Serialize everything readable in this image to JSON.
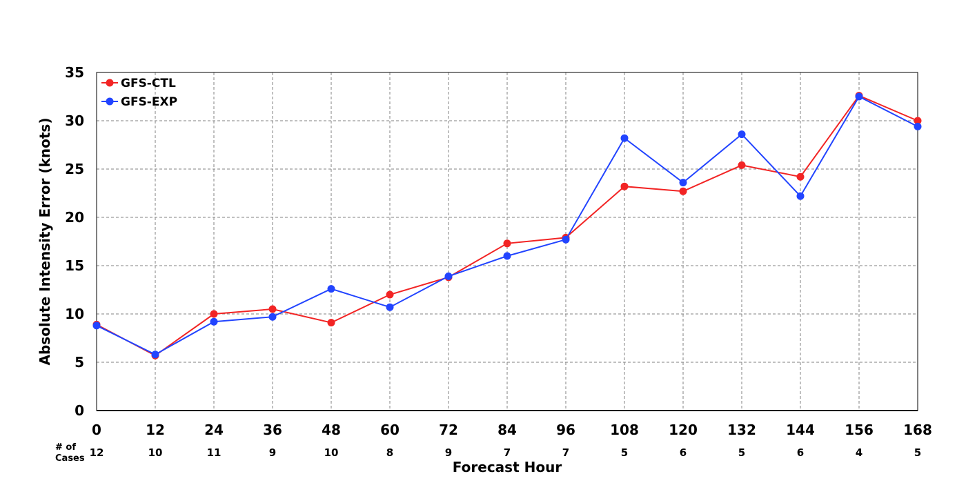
{
  "chart_data": {
    "type": "line",
    "xlabel": "Forecast Hour",
    "ylabel": "Absolute Intensity Error (knots)",
    "x": [
      0,
      12,
      24,
      36,
      48,
      60,
      72,
      84,
      96,
      108,
      120,
      132,
      144,
      156,
      168
    ],
    "xlim": [
      0,
      168
    ],
    "ylim": [
      0,
      35
    ],
    "yticks": [
      0,
      5,
      10,
      15,
      20,
      25,
      30,
      35
    ],
    "grid": true,
    "legend_position": "top-left",
    "cases_label": [
      "# of",
      "Cases"
    ],
    "cases": [
      12,
      10,
      11,
      9,
      10,
      8,
      9,
      7,
      7,
      5,
      6,
      5,
      6,
      4,
      5
    ],
    "series": [
      {
        "name": "GFS-CTL",
        "color": "#f22424",
        "values": [
          8.9,
          5.7,
          10.0,
          10.5,
          9.1,
          12.0,
          13.8,
          17.3,
          17.9,
          23.2,
          22.7,
          25.4,
          24.2,
          32.6,
          30.0
        ]
      },
      {
        "name": "GFS-EXP",
        "color": "#2244ff",
        "values": [
          8.8,
          5.8,
          9.2,
          9.7,
          12.6,
          10.7,
          13.9,
          16.0,
          17.7,
          28.2,
          23.6,
          28.6,
          22.2,
          32.5,
          29.4
        ]
      }
    ]
  }
}
